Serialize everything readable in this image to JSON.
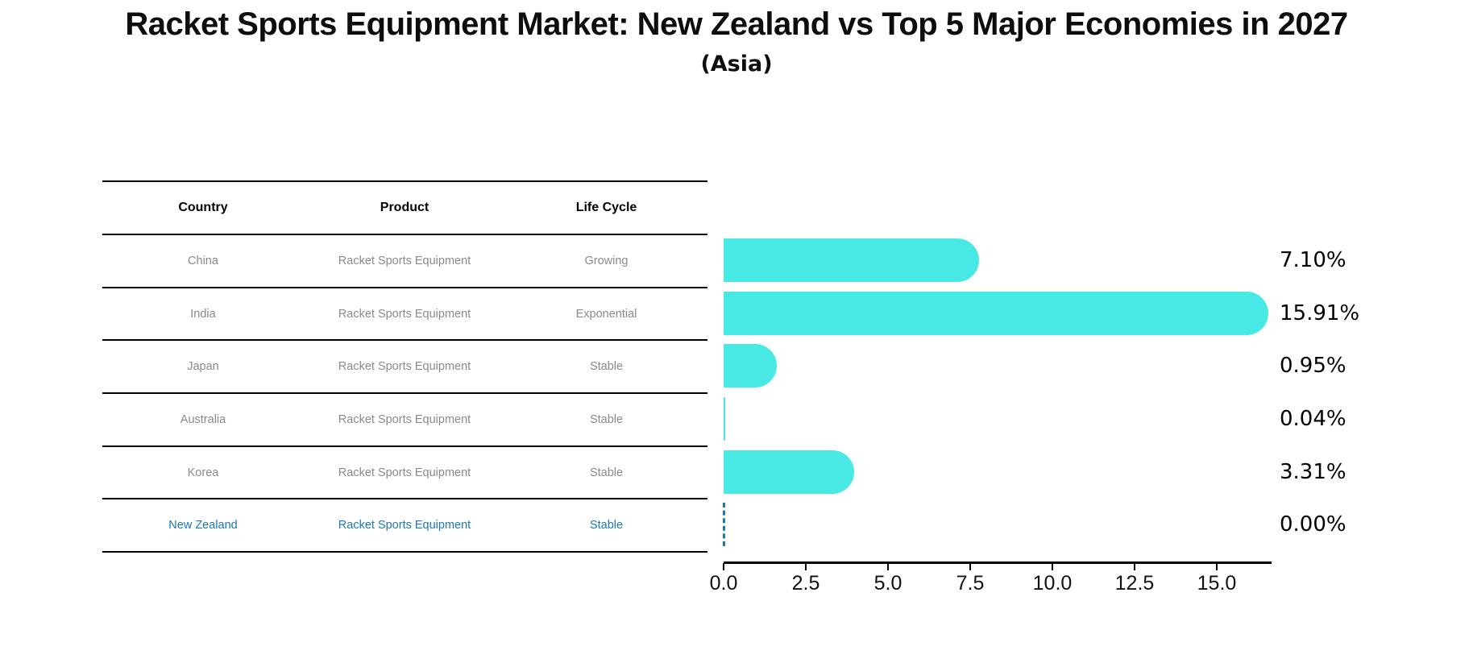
{
  "chart_data": {
    "type": "bar",
    "orientation": "horizontal",
    "title": "Racket Sports Equipment Market: New Zealand vs Top 5 Major Economies in 2027",
    "subtitle": "(Asia)",
    "categories": [
      "China",
      "India",
      "Japan",
      "Australia",
      "Korea",
      "New Zealand"
    ],
    "values": [
      7.1,
      15.91,
      0.95,
      0.04,
      3.31,
      0.0
    ],
    "value_labels": [
      "7.10%",
      "15.91%",
      "0.95%",
      "0.04%",
      "3.31%",
      "0.00%"
    ],
    "xlabel": "",
    "ylabel": "",
    "xlim": [
      0,
      16.7
    ],
    "x_ticks": [
      0.0,
      2.5,
      5.0,
      7.5,
      10.0,
      12.5,
      15.0
    ],
    "x_tick_labels": [
      "0.0",
      "2.5",
      "5.0",
      "7.5",
      "10.0",
      "12.5",
      "15.0"
    ],
    "grid": false,
    "legend": false,
    "bar_color": "#48E8E4",
    "highlight_color": "#1f77b4",
    "highlighted_category": "New Zealand",
    "zero_value_marker": "dashed-vertical-line"
  },
  "table": {
    "headers": [
      "Country",
      "Product",
      "Life Cycle"
    ],
    "rows": [
      {
        "country": "China",
        "product": "Racket Sports Equipment",
        "life_cycle": "Growing",
        "highlighted": false
      },
      {
        "country": "India",
        "product": "Racket Sports Equipment",
        "life_cycle": "Exponential",
        "highlighted": false
      },
      {
        "country": "Japan",
        "product": "Racket Sports Equipment",
        "life_cycle": "Stable",
        "highlighted": false
      },
      {
        "country": "Australia",
        "product": "Racket Sports Equipment",
        "life_cycle": "Stable",
        "highlighted": false
      },
      {
        "country": "Korea",
        "product": "Racket Sports Equipment",
        "life_cycle": "Stable",
        "highlighted": false
      },
      {
        "country": "New Zealand",
        "product": "Racket Sports Equipment",
        "life_cycle": "Stable",
        "highlighted": true
      }
    ]
  },
  "colors": {
    "bar": "#48E8E4",
    "highlight_blue": "#1f77b4",
    "table_text_gray": "#8a8a8a",
    "axis_black": "#000000"
  }
}
